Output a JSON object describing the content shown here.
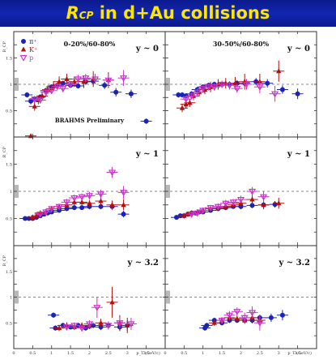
{
  "banner": {
    "title_main": "R",
    "title_sub": "CP",
    "title_rest": " in d+Au collisions",
    "bg_color": "#1226b0",
    "text_color": "#ffe600"
  },
  "chart_data": {
    "type": "scatter",
    "layout": "3 rows x 2 columns",
    "ylabel": "R_CP",
    "xlabel": "p_T (GeV/c)",
    "xlim": [
      0,
      4.0
    ],
    "ylim": [
      0,
      2.0
    ],
    "x_ticks": [
      "0",
      "0.5",
      "1",
      "1.5",
      "2",
      "2.5",
      "3",
      "3.5"
    ],
    "y_ticks": [
      "0.5",
      "1",
      "1.5"
    ],
    "reference_line": 1.0,
    "legend": [
      {
        "label": "π⁺",
        "color": "#1a22b8",
        "marker": "circle"
      },
      {
        "label": "K⁺",
        "color": "#b01010",
        "marker": "triangle"
      },
      {
        "label": "p",
        "color": "#cc33cc",
        "marker": "open-triangle"
      }
    ],
    "panels": [
      {
        "row": 0,
        "col": 0,
        "rapidity": "y ~ 0",
        "centrality": "0-20%/60-80%",
        "note": "BRAHMS Preliminary",
        "series": [
          {
            "name": "π⁺",
            "x": [
              0.35,
              0.45,
              0.55,
              0.7,
              0.85,
              1.0,
              1.15,
              1.3,
              1.5,
              1.7,
              1.9,
              2.1,
              2.4,
              2.7,
              3.1,
              3.5
            ],
            "y": [
              0.8,
              0.68,
              0.72,
              0.76,
              0.88,
              0.95,
              0.98,
              1.02,
              0.98,
              0.97,
              1.05,
              1.06,
              0.98,
              0.85,
              0.82,
              0.3
            ],
            "err": [
              0.05,
              0.06,
              0.05,
              0.05,
              0.05,
              0.05,
              0.05,
              0.05,
              0.05,
              0.05,
              0.06,
              0.06,
              0.07,
              0.08,
              0.08,
              0.05
            ]
          },
          {
            "name": "K⁺",
            "x": [
              0.45,
              0.55,
              0.65,
              0.75,
              0.9,
              1.05,
              1.2,
              1.4,
              1.6,
              1.85,
              2.1,
              2.5
            ],
            "y": [
              0.02,
              0.58,
              0.7,
              0.78,
              0.9,
              0.97,
              1.05,
              1.1,
              1.05,
              1.05,
              1.1,
              1.08
            ],
            "err": [
              0.04,
              0.08,
              0.08,
              0.08,
              0.08,
              0.09,
              0.1,
              0.1,
              0.1,
              0.12,
              0.15,
              0.15
            ]
          },
          {
            "name": "p",
            "x": [
              0.55,
              0.7,
              0.85,
              1.0,
              1.15,
              1.3,
              1.5,
              1.7,
              1.9,
              2.15,
              2.5,
              2.9
            ],
            "y": [
              0.72,
              0.7,
              0.85,
              0.88,
              0.96,
              0.92,
              1.0,
              1.1,
              1.12,
              1.1,
              1.08,
              1.12
            ],
            "err": [
              0.06,
              0.06,
              0.06,
              0.06,
              0.06,
              0.07,
              0.07,
              0.08,
              0.08,
              0.1,
              0.12,
              0.15
            ]
          }
        ]
      },
      {
        "row": 0,
        "col": 1,
        "rapidity": "y ~ 0",
        "centrality": "30-50%/60-80%",
        "series": [
          {
            "name": "π⁺",
            "x": [
              0.35,
              0.45,
              0.55,
              0.7,
              0.85,
              1.0,
              1.15,
              1.3,
              1.5,
              1.7,
              1.9,
              2.1,
              2.4,
              2.7,
              3.1,
              3.5
            ],
            "y": [
              0.8,
              0.8,
              0.78,
              0.82,
              0.9,
              0.95,
              0.98,
              1.0,
              1.0,
              1.0,
              1.02,
              1.02,
              1.05,
              1.02,
              0.9,
              0.82
            ],
            "err": [
              0.05,
              0.05,
              0.05,
              0.05,
              0.05,
              0.05,
              0.05,
              0.05,
              0.05,
              0.05,
              0.06,
              0.06,
              0.07,
              0.08,
              0.08,
              0.1
            ]
          },
          {
            "name": "K⁺",
            "x": [
              0.45,
              0.55,
              0.65,
              0.75,
              0.9,
              1.05,
              1.2,
              1.4,
              1.6,
              1.85,
              2.1,
              2.5,
              3.0
            ],
            "y": [
              0.55,
              0.62,
              0.65,
              0.78,
              0.85,
              0.9,
              0.95,
              1.0,
              1.02,
              1.02,
              1.05,
              1.05,
              1.25
            ],
            "err": [
              0.08,
              0.08,
              0.08,
              0.08,
              0.08,
              0.09,
              0.1,
              0.1,
              0.1,
              0.12,
              0.15,
              0.15,
              0.2
            ]
          },
          {
            "name": "p",
            "x": [
              0.55,
              0.7,
              0.85,
              1.0,
              1.15,
              1.3,
              1.5,
              1.7,
              1.9,
              2.15,
              2.5,
              2.9
            ],
            "y": [
              0.72,
              0.78,
              0.85,
              0.92,
              0.95,
              0.95,
              1.0,
              0.98,
              0.92,
              1.0,
              0.95,
              0.82
            ],
            "err": [
              0.06,
              0.06,
              0.06,
              0.06,
              0.06,
              0.07,
              0.07,
              0.08,
              0.08,
              0.1,
              0.12,
              0.15
            ]
          }
        ]
      },
      {
        "row": 1,
        "col": 0,
        "rapidity": "y ~ 1",
        "series": [
          {
            "name": "π⁺",
            "x": [
              0.3,
              0.4,
              0.5,
              0.6,
              0.7,
              0.8,
              0.9,
              1.0,
              1.2,
              1.4,
              1.6,
              1.8,
              2.0,
              2.3,
              2.6,
              2.9
            ],
            "y": [
              0.5,
              0.5,
              0.5,
              0.52,
              0.55,
              0.58,
              0.6,
              0.62,
              0.65,
              0.68,
              0.7,
              0.7,
              0.72,
              0.72,
              0.72,
              0.58
            ],
            "err": [
              0.03,
              0.03,
              0.03,
              0.03,
              0.03,
              0.03,
              0.03,
              0.03,
              0.03,
              0.04,
              0.04,
              0.04,
              0.05,
              0.05,
              0.06,
              0.06
            ]
          },
          {
            "name": "K⁺",
            "x": [
              0.5,
              0.6,
              0.7,
              0.85,
              1.0,
              1.2,
              1.4,
              1.6,
              1.8,
              2.0,
              2.3,
              2.6,
              2.9
            ],
            "y": [
              0.52,
              0.55,
              0.6,
              0.62,
              0.68,
              0.72,
              0.75,
              0.8,
              0.8,
              0.78,
              0.82,
              0.75,
              0.75
            ],
            "err": [
              0.05,
              0.05,
              0.05,
              0.05,
              0.05,
              0.05,
              0.05,
              0.06,
              0.06,
              0.06,
              0.08,
              0.08,
              0.1
            ]
          },
          {
            "name": "p",
            "x": [
              0.7,
              0.85,
              1.0,
              1.2,
              1.4,
              1.6,
              1.8,
              2.0,
              2.3,
              2.6,
              2.9
            ],
            "y": [
              0.58,
              0.62,
              0.68,
              0.72,
              0.8,
              0.88,
              0.9,
              0.92,
              0.95,
              1.35,
              0.98
            ],
            "err": [
              0.05,
              0.05,
              0.05,
              0.05,
              0.06,
              0.06,
              0.06,
              0.07,
              0.08,
              0.1,
              0.12
            ]
          }
        ]
      },
      {
        "row": 1,
        "col": 1,
        "rapidity": "y ~ 1",
        "series": [
          {
            "name": "π⁺",
            "x": [
              0.3,
              0.4,
              0.5,
              0.6,
              0.7,
              0.8,
              0.9,
              1.0,
              1.2,
              1.4,
              1.6,
              1.8,
              2.0,
              2.3,
              2.6,
              2.9
            ],
            "y": [
              0.52,
              0.55,
              0.55,
              0.58,
              0.6,
              0.6,
              0.62,
              0.62,
              0.65,
              0.68,
              0.7,
              0.72,
              0.72,
              0.74,
              0.75,
              0.76
            ],
            "err": [
              0.03,
              0.03,
              0.03,
              0.03,
              0.03,
              0.03,
              0.03,
              0.03,
              0.03,
              0.04,
              0.04,
              0.04,
              0.05,
              0.05,
              0.06,
              0.06
            ]
          },
          {
            "name": "K⁺",
            "x": [
              0.5,
              0.6,
              0.7,
              0.85,
              1.0,
              1.2,
              1.4,
              1.6,
              1.8,
              2.0,
              2.3,
              2.6,
              3.0
            ],
            "y": [
              0.55,
              0.58,
              0.6,
              0.62,
              0.65,
              0.68,
              0.7,
              0.72,
              0.75,
              0.78,
              0.85,
              0.75,
              0.78
            ],
            "err": [
              0.05,
              0.05,
              0.05,
              0.05,
              0.05,
              0.05,
              0.05,
              0.06,
              0.06,
              0.06,
              0.08,
              0.08,
              0.1
            ]
          },
          {
            "name": "p",
            "x": [
              0.7,
              0.85,
              1.0,
              1.2,
              1.4,
              1.6,
              1.8,
              2.0,
              2.3,
              2.6
            ],
            "y": [
              0.58,
              0.6,
              0.65,
              0.7,
              0.72,
              0.78,
              0.8,
              0.85,
              1.0,
              0.9
            ],
            "err": [
              0.05,
              0.05,
              0.05,
              0.05,
              0.06,
              0.06,
              0.06,
              0.07,
              0.08,
              0.1
            ]
          }
        ]
      },
      {
        "row": 2,
        "col": 0,
        "rapidity": "y ~ 3.2",
        "series": [
          {
            "name": "π⁺",
            "x": [
              1.05,
              1.1,
              1.3,
              1.5,
              1.7,
              1.9,
              2.1,
              2.3,
              2.5,
              2.8,
              3.0
            ],
            "y": [
              0.65,
              0.4,
              0.45,
              0.42,
              0.45,
              0.4,
              0.45,
              0.42,
              0.45,
              0.42,
              0.45
            ],
            "err": [
              0.05,
              0.05,
              0.05,
              0.05,
              0.05,
              0.05,
              0.05,
              0.06,
              0.06,
              0.08,
              0.1
            ]
          },
          {
            "name": "K⁺",
            "x": [
              1.2,
              1.4,
              1.6,
              1.8,
              2.0,
              2.3,
              2.6,
              2.8,
              3.0
            ],
            "y": [
              0.4,
              0.45,
              0.42,
              0.45,
              0.45,
              0.5,
              0.9,
              0.5,
              0.45
            ],
            "err": [
              0.06,
              0.06,
              0.06,
              0.06,
              0.07,
              0.08,
              0.3,
              0.15,
              0.15
            ]
          },
          {
            "name": "p",
            "x": [
              1.4,
              1.6,
              1.8,
              2.0,
              2.2,
              2.5,
              2.8,
              3.1
            ],
            "y": [
              0.42,
              0.45,
              0.4,
              0.48,
              0.8,
              0.45,
              0.5,
              0.48
            ],
            "err": [
              0.06,
              0.06,
              0.06,
              0.07,
              0.2,
              0.08,
              0.1,
              0.12
            ]
          }
        ]
      },
      {
        "row": 2,
        "col": 1,
        "rapidity": "y ~ 3.2",
        "series": [
          {
            "name": "π⁺",
            "x": [
              1.05,
              1.1,
              1.3,
              1.5,
              1.7,
              1.9,
              2.1,
              2.3,
              2.5,
              2.8,
              3.1
            ],
            "y": [
              0.4,
              0.45,
              0.55,
              0.5,
              0.55,
              0.55,
              0.55,
              0.55,
              0.6,
              0.6,
              0.65
            ],
            "err": [
              0.05,
              0.05,
              0.05,
              0.05,
              0.05,
              0.05,
              0.05,
              0.06,
              0.06,
              0.08,
              0.1
            ]
          },
          {
            "name": "K⁺",
            "x": [
              1.3,
              1.5,
              1.7,
              1.9,
              2.1,
              2.3,
              2.5
            ],
            "y": [
              0.5,
              0.55,
              0.6,
              0.58,
              0.55,
              0.6,
              0.55
            ],
            "err": [
              0.06,
              0.06,
              0.06,
              0.06,
              0.07,
              0.08,
              0.1
            ]
          },
          {
            "name": "p",
            "x": [
              1.5,
              1.7,
              1.9,
              2.1,
              2.3,
              2.5
            ],
            "y": [
              0.55,
              0.65,
              0.72,
              0.6,
              0.7,
              0.5
            ],
            "err": [
              0.06,
              0.08,
              0.08,
              0.1,
              0.12,
              0.15
            ]
          }
        ]
      }
    ]
  }
}
